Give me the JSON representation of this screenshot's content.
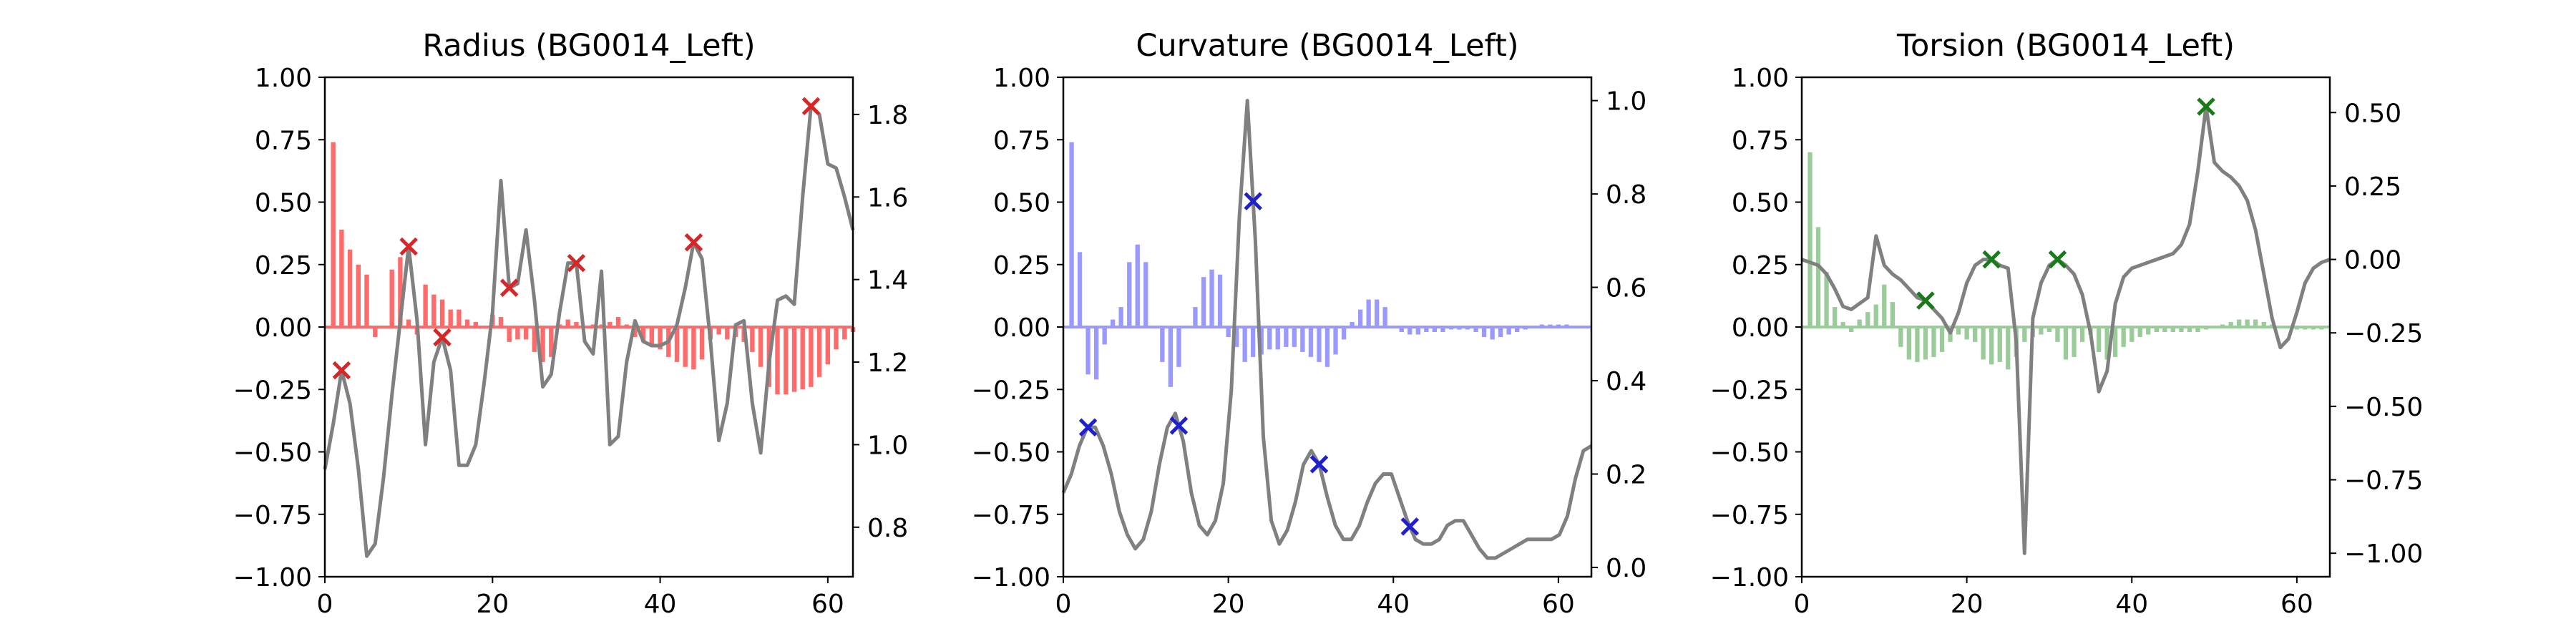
{
  "chart_data": [
    {
      "type": "bar",
      "title": "Radius (BG0014_Left)",
      "bar_color": "#ff6b6b",
      "line_color": "#808080",
      "marker_color": "#d62728",
      "x_range": [
        0,
        63
      ],
      "x_ticks": [
        0,
        20,
        40,
        60
      ],
      "ylim_left": [
        -1.0,
        1.0
      ],
      "yticks_left": [
        "1.00",
        "0.75",
        "0.50",
        "0.25",
        "0.00",
        "−0.25",
        "−0.50",
        "−0.75",
        "−1.00"
      ],
      "ylim_right": [
        0.68,
        1.89
      ],
      "yticks_right": [
        "1.8",
        "1.6",
        "1.4",
        "1.2",
        "1.0",
        "0.8"
      ],
      "bar_values": [
        0.0,
        0.74,
        0.39,
        0.31,
        0.25,
        0.21,
        -0.04,
        0.0,
        0.23,
        0.28,
        0.03,
        -0.03,
        0.17,
        0.13,
        0.11,
        0.07,
        0.07,
        0.03,
        0.02,
        0.0,
        0.05,
        0.04,
        -0.06,
        -0.05,
        -0.05,
        -0.1,
        -0.14,
        -0.12,
        0.01,
        0.03,
        0.02,
        0.0,
        0.01,
        0.01,
        0.02,
        0.04,
        0.01,
        -0.04,
        -0.06,
        -0.08,
        -0.09,
        -0.12,
        -0.14,
        -0.16,
        -0.17,
        -0.13,
        -0.05,
        -0.03,
        -0.05,
        -0.04,
        -0.06,
        -0.1,
        -0.16,
        -0.24,
        -0.27,
        -0.27,
        -0.26,
        -0.25,
        -0.24,
        -0.2,
        -0.15,
        -0.09,
        -0.05,
        -0.02
      ],
      "line_values": [
        0.94,
        1.05,
        1.18,
        1.1,
        0.94,
        0.73,
        0.76,
        0.92,
        1.12,
        1.3,
        1.48,
        1.3,
        1.0,
        1.2,
        1.26,
        1.18,
        0.95,
        0.95,
        1.0,
        1.15,
        1.32,
        1.64,
        1.38,
        1.39,
        1.52,
        1.35,
        1.14,
        1.17,
        1.32,
        1.44,
        1.44,
        1.25,
        1.22,
        1.42,
        1.0,
        1.02,
        1.2,
        1.3,
        1.25,
        1.24,
        1.24,
        1.25,
        1.29,
        1.38,
        1.49,
        1.45,
        1.25,
        1.01,
        1.1,
        1.29,
        1.3,
        1.1,
        0.98,
        1.2,
        1.35,
        1.36,
        1.34,
        1.6,
        1.82,
        1.8,
        1.68,
        1.67,
        1.6,
        1.52
      ],
      "marker_x": [
        2,
        10,
        14,
        22,
        30,
        44,
        58
      ]
    },
    {
      "type": "bar",
      "title": "Curvature (BG0014_Left)",
      "bar_color": "#9999ff",
      "line_color": "#808080",
      "marker_color": "#1f1fcc",
      "x_range": [
        0,
        64
      ],
      "x_ticks": [
        0,
        20,
        40,
        60
      ],
      "ylim_left": [
        -1.0,
        1.0
      ],
      "yticks_left": [
        "1.00",
        "0.75",
        "0.50",
        "0.25",
        "0.00",
        "−0.25",
        "−0.50",
        "−0.75",
        "−1.00"
      ],
      "ylim_right": [
        -0.02,
        1.05
      ],
      "yticks_right": [
        "1.0",
        "0.8",
        "0.6",
        "0.4",
        "0.2",
        "0.0"
      ],
      "bar_values": [
        0.0,
        0.74,
        0.3,
        -0.19,
        -0.21,
        -0.07,
        0.03,
        0.08,
        0.26,
        0.33,
        0.26,
        0.0,
        -0.14,
        -0.24,
        -0.16,
        0.0,
        0.08,
        0.2,
        0.23,
        0.21,
        -0.04,
        -0.08,
        -0.14,
        -0.12,
        -0.11,
        -0.09,
        -0.09,
        -0.08,
        -0.08,
        -0.1,
        -0.12,
        -0.14,
        -0.16,
        -0.11,
        -0.05,
        0.02,
        0.07,
        0.11,
        0.11,
        0.08,
        0.0,
        -0.02,
        -0.03,
        -0.03,
        -0.02,
        -0.02,
        -0.02,
        -0.01,
        -0.01,
        -0.01,
        -0.02,
        -0.04,
        -0.05,
        -0.04,
        -0.03,
        -0.02,
        -0.01,
        0.0,
        0.01,
        0.01,
        0.01,
        0.01,
        0.0,
        0.0
      ],
      "line_values": [
        0.16,
        0.2,
        0.26,
        0.3,
        0.3,
        0.26,
        0.2,
        0.12,
        0.07,
        0.04,
        0.06,
        0.12,
        0.22,
        0.3,
        0.33,
        0.27,
        0.16,
        0.09,
        0.07,
        0.1,
        0.18,
        0.38,
        0.75,
        1.0,
        0.7,
        0.28,
        0.1,
        0.05,
        0.08,
        0.14,
        0.22,
        0.25,
        0.22,
        0.15,
        0.09,
        0.06,
        0.06,
        0.09,
        0.14,
        0.18,
        0.2,
        0.2,
        0.15,
        0.1,
        0.06,
        0.05,
        0.05,
        0.06,
        0.09,
        0.1,
        0.1,
        0.07,
        0.04,
        0.02,
        0.02,
        0.03,
        0.04,
        0.05,
        0.06,
        0.06,
        0.06,
        0.06,
        0.07,
        0.11,
        0.19,
        0.25,
        0.26
      ],
      "marker_x": [
        3,
        14,
        23,
        31,
        42
      ]
    },
    {
      "type": "bar",
      "title": "Torsion (BG0014_Left)",
      "bar_color": "#99cc99",
      "line_color": "#808080",
      "marker_color": "#1a7a1a",
      "x_range": [
        0,
        64
      ],
      "x_ticks": [
        0,
        20,
        40,
        60
      ],
      "ylim_left": [
        -1.0,
        1.0
      ],
      "yticks_left": [
        "1.00",
        "0.75",
        "0.50",
        "0.25",
        "0.00",
        "−0.25",
        "−0.50",
        "−0.75",
        "−1.00"
      ],
      "ylim_right": [
        -1.08,
        0.62
      ],
      "yticks_right": [
        "0.50",
        "0.25",
        "0.00",
        "−0.25",
        "−0.50",
        "−0.75",
        "−1.00"
      ],
      "bar_values": [
        0.0,
        0.7,
        0.4,
        0.22,
        0.08,
        0.02,
        -0.02,
        0.03,
        0.06,
        0.09,
        0.17,
        0.1,
        -0.08,
        -0.13,
        -0.14,
        -0.13,
        -0.12,
        -0.1,
        -0.06,
        -0.03,
        -0.05,
        -0.06,
        -0.13,
        -0.15,
        -0.14,
        -0.17,
        -0.12,
        -0.06,
        -0.04,
        -0.03,
        -0.02,
        -0.06,
        -0.13,
        -0.12,
        -0.06,
        -0.03,
        -0.1,
        -0.13,
        -0.12,
        -0.08,
        -0.06,
        -0.04,
        -0.03,
        -0.02,
        -0.02,
        -0.02,
        -0.02,
        -0.02,
        -0.02,
        -0.01,
        0.0,
        0.01,
        0.02,
        0.03,
        0.03,
        0.03,
        0.02,
        0.01,
        0.0,
        0.0,
        -0.01,
        -0.01,
        -0.01,
        -0.01
      ],
      "line_values": [
        0.0,
        -0.01,
        -0.02,
        -0.05,
        -0.1,
        -0.16,
        -0.17,
        -0.15,
        -0.13,
        0.08,
        -0.02,
        -0.05,
        -0.07,
        -0.1,
        -0.13,
        -0.14,
        -0.17,
        -0.2,
        -0.25,
        -0.18,
        -0.08,
        -0.02,
        0.0,
        0.0,
        -0.02,
        -0.03,
        -0.28,
        -1.0,
        -0.2,
        -0.08,
        -0.02,
        0.0,
        -0.02,
        -0.05,
        -0.12,
        -0.25,
        -0.45,
        -0.38,
        -0.15,
        -0.06,
        -0.03,
        -0.02,
        -0.01,
        0.0,
        0.01,
        0.02,
        0.05,
        0.12,
        0.3,
        0.52,
        0.33,
        0.3,
        0.28,
        0.25,
        0.2,
        0.1,
        -0.05,
        -0.2,
        -0.3,
        -0.27,
        -0.18,
        -0.08,
        -0.03,
        -0.01,
        0.0
      ],
      "marker_x": [
        15,
        23,
        31,
        49
      ]
    }
  ]
}
